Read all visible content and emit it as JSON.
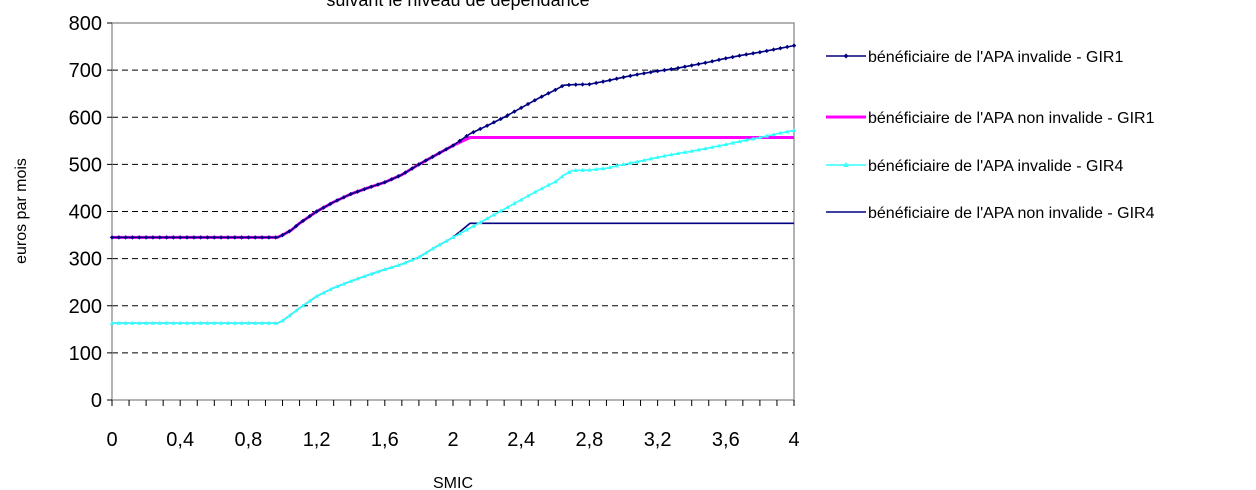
{
  "chart_data": {
    "type": "line",
    "title": "suivant le niveau de dépendance",
    "xlabel": "SMIC",
    "ylabel": "euros par mois",
    "xlim": [
      0,
      4
    ],
    "ylim": [
      0,
      800
    ],
    "x_ticks": [
      "0",
      "0,4",
      "0,8",
      "1,2",
      "1,6",
      "2",
      "2,4",
      "2,8",
      "3,2",
      "3,6",
      "4"
    ],
    "x_tick_values": [
      0,
      0.4,
      0.8,
      1.2,
      1.6,
      2,
      2.4,
      2.8,
      3.2,
      3.6,
      4
    ],
    "y_ticks": [
      "0",
      "100",
      "200",
      "300",
      "400",
      "500",
      "600",
      "700",
      "800"
    ],
    "y_tick_values": [
      0,
      100,
      200,
      300,
      400,
      500,
      600,
      700,
      800
    ],
    "grid": "horizontal-dashed",
    "legend_position": "right",
    "series": [
      {
        "name": "bénéficiaire de l'APA invalide - GIR1",
        "color": "#000080",
        "marker": "diamond",
        "x": [
          0,
          0.5,
          0.97,
          1.0,
          1.05,
          1.1,
          1.2,
          1.3,
          1.4,
          1.5,
          1.6,
          1.7,
          1.8,
          1.9,
          2.0,
          2.1,
          2.2,
          2.3,
          2.4,
          2.5,
          2.6,
          2.65,
          2.7,
          2.8,
          2.9,
          3.0,
          3.1,
          3.2,
          3.3,
          3.4,
          3.5,
          3.6,
          3.7,
          3.8,
          3.9,
          4.0
        ],
        "y": [
          345,
          345,
          345,
          350,
          360,
          375,
          400,
          420,
          437,
          450,
          462,
          478,
          500,
          520,
          540,
          565,
          582,
          600,
          620,
          640,
          658,
          668,
          669,
          670,
          677,
          685,
          692,
          698,
          703,
          710,
          717,
          725,
          732,
          738,
          745,
          752
        ]
      },
      {
        "name": "bénéficiaire de l'APA non invalide - GIR1",
        "color": "#FF00FF",
        "marker": "none",
        "x": [
          0,
          0.5,
          0.97,
          1.0,
          1.05,
          1.1,
          1.2,
          1.3,
          1.4,
          1.5,
          1.6,
          1.7,
          1.8,
          1.9,
          2.0,
          2.1,
          4.0
        ],
        "y": [
          345,
          345,
          345,
          350,
          360,
          375,
          400,
          420,
          437,
          450,
          462,
          478,
          500,
          520,
          540,
          557,
          557
        ]
      },
      {
        "name": "bénéficiaire de l'APA invalide - GIR4",
        "color": "#33FFFF",
        "marker": "triangle",
        "x": [
          0,
          0.5,
          0.97,
          1.0,
          1.1,
          1.2,
          1.3,
          1.4,
          1.5,
          1.6,
          1.7,
          1.8,
          1.9,
          2.0,
          2.1,
          2.2,
          2.3,
          2.4,
          2.5,
          2.6,
          2.65,
          2.7,
          2.8,
          2.9,
          3.0,
          3.1,
          3.2,
          3.3,
          3.4,
          3.5,
          3.6,
          3.7,
          3.8,
          3.9,
          4.0
        ],
        "y": [
          163,
          163,
          163,
          168,
          195,
          220,
          238,
          252,
          265,
          277,
          288,
          303,
          325,
          345,
          365,
          385,
          405,
          425,
          445,
          463,
          477,
          487,
          488,
          492,
          500,
          507,
          515,
          522,
          528,
          535,
          542,
          550,
          557,
          565,
          572
        ]
      },
      {
        "name": "bénéficiaire de l'APA non invalide - GIR4",
        "color": "#000080",
        "marker": "none",
        "x": [
          0,
          0.5,
          0.97,
          1.0,
          1.1,
          1.2,
          1.3,
          1.4,
          1.5,
          1.6,
          1.7,
          1.8,
          1.9,
          2.0,
          2.1,
          4.0
        ],
        "y": [
          163,
          163,
          163,
          168,
          195,
          220,
          238,
          252,
          265,
          277,
          288,
          303,
          325,
          345,
          375,
          375
        ]
      }
    ]
  }
}
